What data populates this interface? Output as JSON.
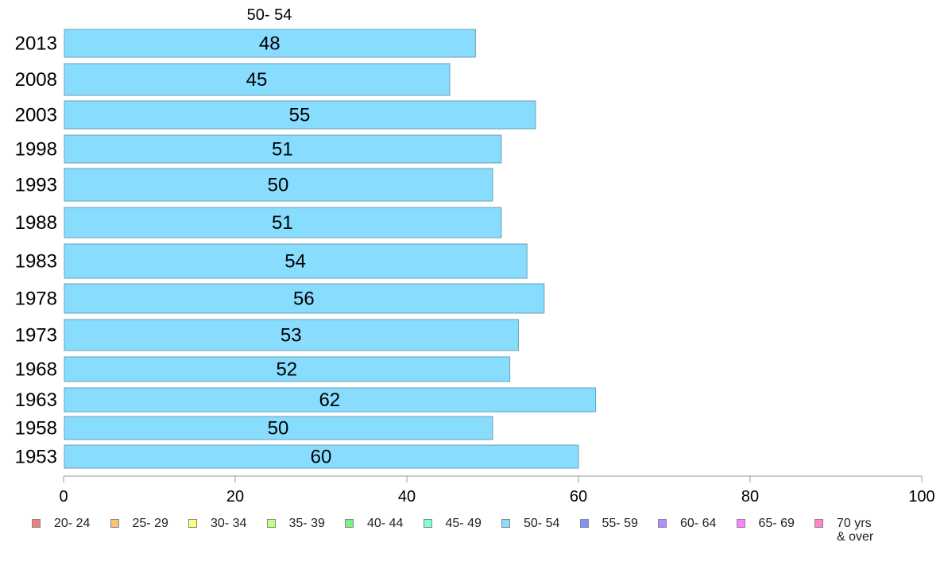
{
  "chart_data": {
    "type": "bar",
    "orientation": "horizontal",
    "title": "50- 54",
    "categories": [
      "2013",
      "2008",
      "2003",
      "1998",
      "1993",
      "1988",
      "1983",
      "1978",
      "1973",
      "1968",
      "1963",
      "1958",
      "1953"
    ],
    "series": [
      {
        "name": "50- 54",
        "values": [
          48,
          45,
          55,
          51,
          50,
          51,
          54,
          56,
          53,
          52,
          62,
          50,
          60
        ],
        "color": "#88ddff"
      }
    ],
    "xlim": [
      0,
      100
    ],
    "xticks": [
      0,
      20,
      40,
      60,
      80,
      100
    ],
    "grid": false,
    "legend_position": "bottom",
    "legend": [
      {
        "label": "20- 24",
        "color": "#f08080"
      },
      {
        "label": "25- 29",
        "color": "#ffc080"
      },
      {
        "label": "30- 34",
        "color": "#ffff80"
      },
      {
        "label": "35- 39",
        "color": "#c0ff80"
      },
      {
        "label": "40- 44",
        "color": "#80f080"
      },
      {
        "label": "45- 49",
        "color": "#80ffd0"
      },
      {
        "label": "50- 54",
        "color": "#88ddff"
      },
      {
        "label": "55- 59",
        "color": "#8090ff"
      },
      {
        "label": "60- 64",
        "color": "#b090ff"
      },
      {
        "label": "65- 69",
        "color": "#ff80ff"
      },
      {
        "label": "70 yrs\n& over",
        "color": "#ff88c8"
      }
    ]
  }
}
